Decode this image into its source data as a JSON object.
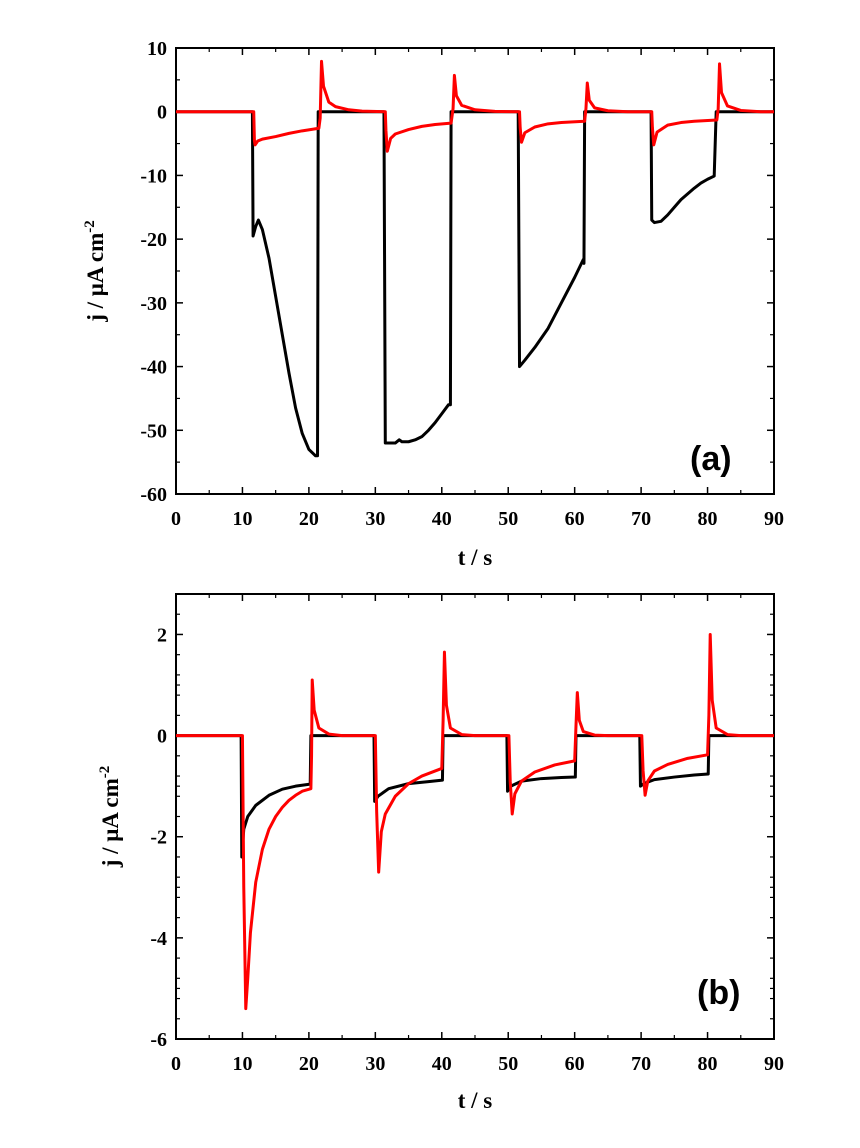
{
  "background_color": "#ffffff",
  "chart_data": [
    {
      "type": "line",
      "panel_label": "(a)",
      "xlabel": "t  / s",
      "ylabel_main": "j / μA cm",
      "ylabel_sup": "-2",
      "xlim": [
        0,
        90
      ],
      "ylim": [
        -60,
        10
      ],
      "xticks": [
        0,
        10,
        20,
        30,
        40,
        50,
        60,
        70,
        80,
        90
      ],
      "yticks": [
        10,
        0,
        -10,
        -20,
        -30,
        -40,
        -50,
        -60
      ],
      "grid": false,
      "series": [
        {
          "name": "black",
          "color": "#000000",
          "points": [
            [
              0,
              0
            ],
            [
              11.5,
              0
            ],
            [
              11.6,
              -19.5
            ],
            [
              12.0,
              -18
            ],
            [
              12.4,
              -17
            ],
            [
              13,
              -18.5
            ],
            [
              14,
              -23
            ],
            [
              15,
              -29
            ],
            [
              16,
              -35
            ],
            [
              17,
              -41
            ],
            [
              18,
              -46.5
            ],
            [
              19,
              -50.5
            ],
            [
              20,
              -53
            ],
            [
              21,
              -54
            ],
            [
              21.3,
              -54
            ],
            [
              21.4,
              0
            ],
            [
              31.3,
              0
            ],
            [
              31.5,
              -52
            ],
            [
              32,
              -52
            ],
            [
              33,
              -52
            ],
            [
              33.6,
              -51.5
            ],
            [
              34,
              -51.8
            ],
            [
              35,
              -51.8
            ],
            [
              36,
              -51.5
            ],
            [
              37,
              -51
            ],
            [
              38,
              -50
            ],
            [
              39,
              -48.8
            ],
            [
              40,
              -47.4
            ],
            [
              41,
              -46
            ],
            [
              41.3,
              -46
            ],
            [
              41.4,
              0
            ],
            [
              51.5,
              0
            ],
            [
              51.7,
              -40
            ],
            [
              52.5,
              -39
            ],
            [
              54,
              -37
            ],
            [
              56,
              -34
            ],
            [
              58,
              -30
            ],
            [
              60,
              -26
            ],
            [
              61.3,
              -23.2
            ],
            [
              61.4,
              -23.8
            ],
            [
              61.5,
              0
            ],
            [
              71.5,
              0
            ],
            [
              71.6,
              -17
            ],
            [
              72,
              -17.4
            ],
            [
              73,
              -17.2
            ],
            [
              74,
              -16.2
            ],
            [
              75,
              -15
            ],
            [
              76,
              -13.8
            ],
            [
              77,
              -12.9
            ],
            [
              78,
              -12
            ],
            [
              79,
              -11.2
            ],
            [
              80,
              -10.6
            ],
            [
              81,
              -10.1
            ],
            [
              81.3,
              0
            ],
            [
              90,
              0
            ]
          ]
        },
        {
          "name": "red",
          "color": "#ff0000",
          "points": [
            [
              0,
              0
            ],
            [
              11.7,
              0
            ],
            [
              11.8,
              -4.5
            ],
            [
              11.9,
              -5.2
            ],
            [
              12.3,
              -4.6
            ],
            [
              13,
              -4.3
            ],
            [
              15,
              -3.9
            ],
            [
              17,
              -3.4
            ],
            [
              19,
              -3.0
            ],
            [
              21.5,
              -2.6
            ],
            [
              21.7,
              -1
            ],
            [
              21.9,
              7.9
            ],
            [
              22.2,
              4.0
            ],
            [
              23,
              1.5
            ],
            [
              24,
              0.8
            ],
            [
              26,
              0.3
            ],
            [
              28,
              0.1
            ],
            [
              31.5,
              0
            ],
            [
              31.6,
              -3
            ],
            [
              31.8,
              -6.2
            ],
            [
              32.3,
              -4.2
            ],
            [
              33,
              -3.5
            ],
            [
              35,
              -2.8
            ],
            [
              37,
              -2.3
            ],
            [
              39,
              -2.0
            ],
            [
              41.4,
              -1.8
            ],
            [
              41.7,
              0.5
            ],
            [
              41.9,
              5.7
            ],
            [
              42.2,
              2.5
            ],
            [
              43,
              1.0
            ],
            [
              45,
              0.3
            ],
            [
              48,
              0.05
            ],
            [
              51.7,
              0
            ],
            [
              51.8,
              -2.5
            ],
            [
              52.0,
              -4.8
            ],
            [
              52.5,
              -3.3
            ],
            [
              54,
              -2.4
            ],
            [
              56,
              -1.9
            ],
            [
              58,
              -1.7
            ],
            [
              61.5,
              -1.5
            ],
            [
              61.7,
              0.5
            ],
            [
              61.9,
              4.5
            ],
            [
              62.2,
              1.8
            ],
            [
              63,
              0.6
            ],
            [
              65,
              0.15
            ],
            [
              68,
              0
            ],
            [
              71.6,
              0
            ],
            [
              71.7,
              -2.5
            ],
            [
              71.9,
              -5.2
            ],
            [
              72.4,
              -3.2
            ],
            [
              74,
              -2.1
            ],
            [
              76,
              -1.7
            ],
            [
              78,
              -1.5
            ],
            [
              81.4,
              -1.3
            ],
            [
              81.6,
              0.5
            ],
            [
              81.8,
              7.5
            ],
            [
              82.1,
              3.0
            ],
            [
              83,
              0.9
            ],
            [
              85,
              0.2
            ],
            [
              88,
              0
            ],
            [
              90,
              0
            ]
          ]
        }
      ]
    },
    {
      "type": "line",
      "panel_label": "(b)",
      "xlabel": "t / s",
      "ylabel_main": "j / μA cm",
      "ylabel_sup": "-2",
      "xlim": [
        0,
        90
      ],
      "ylim": [
        -6,
        2.8
      ],
      "xticks": [
        0,
        10,
        20,
        30,
        40,
        50,
        60,
        70,
        80,
        90
      ],
      "yticks": [
        2,
        0,
        -2,
        -4,
        -6
      ],
      "grid": false,
      "series": [
        {
          "name": "black",
          "color": "#000000",
          "points": [
            [
              0,
              0
            ],
            [
              9.8,
              0
            ],
            [
              9.9,
              -2.4
            ],
            [
              10.2,
              -1.85
            ],
            [
              10.8,
              -1.6
            ],
            [
              12,
              -1.38
            ],
            [
              14,
              -1.18
            ],
            [
              16,
              -1.06
            ],
            [
              18,
              -1.0
            ],
            [
              20.2,
              -0.96
            ],
            [
              20.3,
              0
            ],
            [
              29.8,
              0
            ],
            [
              29.9,
              -1.3
            ],
            [
              30.4,
              -1.2
            ],
            [
              32,
              -1.05
            ],
            [
              35,
              -0.95
            ],
            [
              38,
              -0.91
            ],
            [
              40.1,
              -0.88
            ],
            [
              40.2,
              0
            ],
            [
              49.8,
              0
            ],
            [
              49.9,
              -1.1
            ],
            [
              50.4,
              -1.0
            ],
            [
              52,
              -0.9
            ],
            [
              55,
              -0.85
            ],
            [
              58,
              -0.83
            ],
            [
              60.1,
              -0.82
            ],
            [
              60.2,
              0
            ],
            [
              69.8,
              0
            ],
            [
              69.9,
              -1.0
            ],
            [
              70.4,
              -0.95
            ],
            [
              72,
              -0.87
            ],
            [
              75,
              -0.82
            ],
            [
              78,
              -0.78
            ],
            [
              80.1,
              -0.76
            ],
            [
              80.2,
              0
            ],
            [
              90,
              0
            ]
          ]
        },
        {
          "name": "red",
          "color": "#ff0000",
          "points": [
            [
              0,
              0
            ],
            [
              10.0,
              0
            ],
            [
              10.2,
              -3.0
            ],
            [
              10.5,
              -5.4
            ],
            [
              10.8,
              -4.8
            ],
            [
              11.2,
              -3.9
            ],
            [
              12,
              -2.9
            ],
            [
              13,
              -2.25
            ],
            [
              14,
              -1.85
            ],
            [
              15,
              -1.6
            ],
            [
              16,
              -1.42
            ],
            [
              17,
              -1.28
            ],
            [
              18,
              -1.18
            ],
            [
              19,
              -1.1
            ],
            [
              20.3,
              -1.05
            ],
            [
              20.4,
              -0.4
            ],
            [
              20.5,
              1.1
            ],
            [
              20.8,
              0.5
            ],
            [
              21.5,
              0.15
            ],
            [
              23,
              0.03
            ],
            [
              25,
              0
            ],
            [
              30.0,
              0
            ],
            [
              30.2,
              -1.5
            ],
            [
              30.5,
              -2.7
            ],
            [
              30.9,
              -1.9
            ],
            [
              31.5,
              -1.55
            ],
            [
              33,
              -1.2
            ],
            [
              35,
              -0.95
            ],
            [
              37,
              -0.8
            ],
            [
              40.0,
              -0.65
            ],
            [
              40.2,
              0.3
            ],
            [
              40.4,
              1.65
            ],
            [
              40.7,
              0.6
            ],
            [
              41.3,
              0.15
            ],
            [
              43,
              0.02
            ],
            [
              45,
              0
            ],
            [
              50.1,
              0
            ],
            [
              50.3,
              -0.9
            ],
            [
              50.6,
              -1.55
            ],
            [
              51,
              -1.15
            ],
            [
              52,
              -0.9
            ],
            [
              54,
              -0.72
            ],
            [
              57,
              -0.58
            ],
            [
              60.0,
              -0.5
            ],
            [
              60.2,
              0.2
            ],
            [
              60.4,
              0.85
            ],
            [
              60.7,
              0.3
            ],
            [
              61.3,
              0.08
            ],
            [
              63,
              0.01
            ],
            [
              65,
              0
            ],
            [
              70.1,
              0
            ],
            [
              70.3,
              -0.7
            ],
            [
              70.6,
              -1.18
            ],
            [
              71,
              -0.9
            ],
            [
              72,
              -0.7
            ],
            [
              74,
              -0.57
            ],
            [
              77,
              -0.45
            ],
            [
              80.0,
              -0.38
            ],
            [
              80.2,
              0.4
            ],
            [
              80.4,
              2.0
            ],
            [
              80.7,
              0.7
            ],
            [
              81.3,
              0.15
            ],
            [
              83,
              0.02
            ],
            [
              85,
              0
            ],
            [
              90,
              0
            ]
          ]
        }
      ]
    }
  ]
}
